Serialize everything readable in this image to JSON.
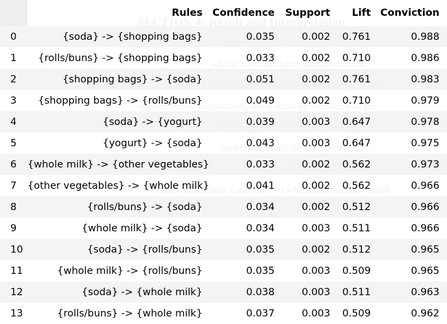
{
  "columns": [
    "Rules",
    "Confidence",
    "Support",
    "Lift",
    "Conviction"
  ],
  "rows": [
    {
      "index": "0",
      "rule": "{soda} -> {shopping bags}",
      "confidence": "0.035",
      "support": "0.002",
      "lift": "0.761",
      "conviction": "0.988"
    },
    {
      "index": "1",
      "rule": "{rolls/buns} -> {shopping bags}",
      "confidence": "0.033",
      "support": "0.002",
      "lift": "0.710",
      "conviction": "0.986"
    },
    {
      "index": "2",
      "rule": "{shopping bags} -> {soda}",
      "confidence": "0.051",
      "support": "0.002",
      "lift": "0.761",
      "conviction": "0.983"
    },
    {
      "index": "3",
      "rule": "{shopping bags} -> {rolls/buns}",
      "confidence": "0.049",
      "support": "0.002",
      "lift": "0.710",
      "conviction": "0.979"
    },
    {
      "index": "4",
      "rule": "{soda} -> {yogurt}",
      "confidence": "0.039",
      "support": "0.003",
      "lift": "0.647",
      "conviction": "0.978"
    },
    {
      "index": "5",
      "rule": "{yogurt} -> {soda}",
      "confidence": "0.043",
      "support": "0.003",
      "lift": "0.647",
      "conviction": "0.975"
    },
    {
      "index": "6",
      "rule": "{whole milk} -> {other vegetables}",
      "confidence": "0.033",
      "support": "0.002",
      "lift": "0.562",
      "conviction": "0.973"
    },
    {
      "index": "7",
      "rule": "{other vegetables} -> {whole milk}",
      "confidence": "0.041",
      "support": "0.002",
      "lift": "0.562",
      "conviction": "0.966"
    },
    {
      "index": "8",
      "rule": "{rolls/buns} -> {soda}",
      "confidence": "0.034",
      "support": "0.002",
      "lift": "0.512",
      "conviction": "0.966"
    },
    {
      "index": "9",
      "rule": "{whole milk} -> {soda}",
      "confidence": "0.034",
      "support": "0.003",
      "lift": "0.511",
      "conviction": "0.966"
    },
    {
      "index": "10",
      "rule": "{soda} -> {rolls/buns}",
      "confidence": "0.035",
      "support": "0.002",
      "lift": "0.512",
      "conviction": "0.965"
    },
    {
      "index": "11",
      "rule": "{whole milk} -> {rolls/buns}",
      "confidence": "0.035",
      "support": "0.003",
      "lift": "0.509",
      "conviction": "0.965"
    },
    {
      "index": "12",
      "rule": "{soda} -> {whole milk}",
      "confidence": "0.038",
      "support": "0.003",
      "lift": "0.511",
      "conviction": "0.963"
    },
    {
      "index": "13",
      "rule": "{rolls/buns} -> {whole milk}",
      "confidence": "0.037",
      "support": "0.003",
      "lift": "0.509",
      "conviction": "0.962"
    }
  ],
  "background_text": [
    "SECTION 4: Result and Interpretation",
    "resulting rules shown below, an im",
    "all the top rules have support of 0.00",
    "This might seem like an extremely small",
    "against 19000 transactions, but it must be stressed that the",
    "interesting association rules among",
    "could potentially be seen from lea",
    "apriori algorithm using support",
    "Methodology step 2 and Cell 10 which has the least numb"
  ]
}
